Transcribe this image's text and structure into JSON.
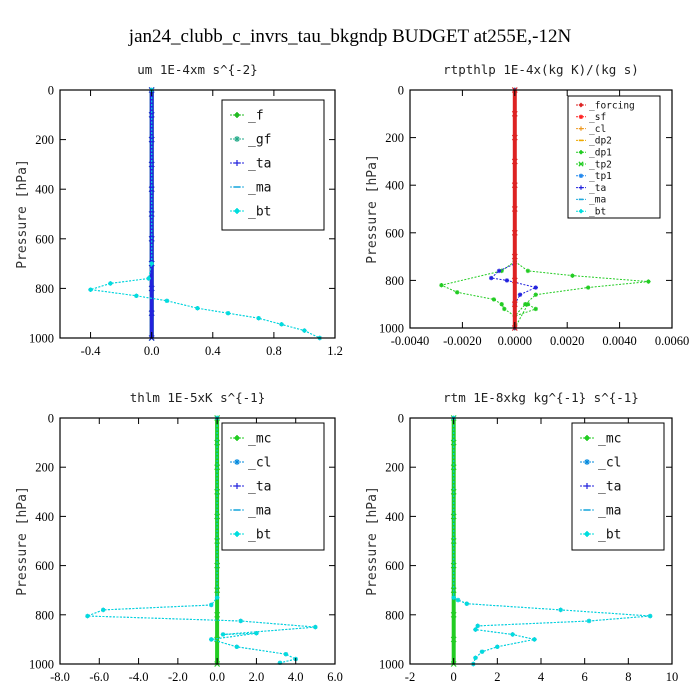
{
  "figure_title": "jan24_clubb_c_invrs_tau_bkgndp  BUDGET at255E,-12N",
  "colors": {
    "f": "#22bb22",
    "gf": "#22aa88",
    "ta": "#2222dd",
    "ma": "#22aadd",
    "bt": "#00dddd",
    "forcing": "#dd2222",
    "sf": "#ff2222",
    "cl": "#ee9922",
    "dp2": "#eeaa00",
    "dp1": "#22cc22",
    "tp2": "#22cc22",
    "tp1": "#2288ee",
    "mc": "#22cc22",
    "cl_blue": "#0088dd"
  },
  "chart_data": [
    {
      "type": "line",
      "title": "um   1E-4xm s^{-2}",
      "ylabel": "Pressure [hPa]",
      "xlim": [
        -0.6,
        1.2
      ],
      "ylim": [
        1000,
        0
      ],
      "xticks": [
        -0.4,
        0,
        0.4,
        0.8,
        1.2
      ],
      "xtick_labels": [
        "-0.4",
        "0.0",
        "0.4",
        "0.8",
        "1.2"
      ],
      "yticks": [
        0,
        200,
        400,
        600,
        800,
        1000
      ],
      "ytick_labels": [
        "0",
        "200",
        "400",
        "600",
        "800",
        "1000"
      ],
      "legend_position": "top-right",
      "legend": [
        "_f",
        "_gf",
        "_ta",
        "_ma",
        "_bt"
      ],
      "series": [
        {
          "name": "_f",
          "color": "#22bb22",
          "x": [
            0,
            0,
            0,
            0,
            0,
            0,
            0,
            0,
            0,
            0,
            0
          ],
          "y": [
            0,
            100,
            200,
            300,
            400,
            500,
            600,
            700,
            800,
            900,
            1000
          ]
        },
        {
          "name": "_gf",
          "color": "#22aa88",
          "x": [
            0,
            0,
            0,
            0,
            0,
            0,
            0,
            0,
            0,
            0,
            0
          ],
          "y": [
            0,
            100,
            200,
            300,
            400,
            500,
            600,
            700,
            800,
            900,
            1000
          ]
        },
        {
          "name": "_ta",
          "color": "#2222dd",
          "x": [
            0,
            0,
            0,
            0,
            0,
            0,
            0,
            0,
            0,
            0,
            0
          ],
          "y": [
            0,
            100,
            200,
            300,
            400,
            500,
            600,
            700,
            800,
            900,
            1000
          ]
        },
        {
          "name": "_ma",
          "color": "#22aadd",
          "x": [
            0,
            0,
            -0.02,
            -0.27,
            -0.4,
            -0.1,
            0.1,
            0.3,
            0.5,
            0.7,
            0.85,
            1.0,
            1.1
          ],
          "y": [
            0,
            700,
            760,
            780,
            805,
            830,
            850,
            880,
            900,
            920,
            945,
            970,
            1000
          ]
        },
        {
          "name": "_bt",
          "color": "#00dddd",
          "x": [
            0,
            0,
            -0.02,
            -0.27,
            -0.4,
            -0.1,
            0.1,
            0.3,
            0.5,
            0.7,
            0.85,
            1.0,
            1.1
          ],
          "y": [
            0,
            700,
            760,
            780,
            805,
            830,
            850,
            880,
            900,
            920,
            945,
            970,
            1000
          ]
        }
      ]
    },
    {
      "type": "line",
      "title": "rtpthlp   1E-4x(kg K)/(kg s)",
      "ylabel": "Pressure [hPa]",
      "xlim": [
        -0.004,
        0.006
      ],
      "ylim": [
        1000,
        0
      ],
      "xticks": [
        -0.004,
        -0.002,
        0,
        0.002,
        0.004,
        0.006
      ],
      "xtick_labels": [
        "-0.0040",
        "-0.0020",
        "0.0000",
        "0.0020",
        "0.0040",
        "0.0060"
      ],
      "yticks": [
        0,
        200,
        400,
        600,
        800,
        1000
      ],
      "ytick_labels": [
        "0",
        "200",
        "400",
        "600",
        "800",
        "1000"
      ],
      "legend_position": "top-right",
      "legend": [
        "_forcing",
        "_sf",
        "_cl",
        "_dp2",
        "_dp1",
        "_tp2",
        "_tp1",
        "_ta",
        "_ma",
        "_bt"
      ],
      "series": [
        {
          "name": "_tp2",
          "color": "#22cc22",
          "x": [
            0,
            0,
            -0.0005,
            -0.0028,
            -0.0022,
            -0.0008,
            -0.0005,
            -0.0004,
            0,
            0.0008,
            0.0005,
            0
          ],
          "y": [
            0,
            720,
            760,
            820,
            850,
            880,
            900,
            920,
            950,
            920,
            900,
            1000
          ]
        },
        {
          "name": "_dp1",
          "color": "#22cc22",
          "x": [
            0,
            0,
            0.0005,
            0.0022,
            0.0051,
            0.0028,
            0.0008,
            0.0004,
            0,
            0
          ],
          "y": [
            0,
            720,
            760,
            780,
            805,
            830,
            860,
            900,
            950,
            1000
          ]
        },
        {
          "name": "_ta",
          "color": "#2222dd",
          "x": [
            0,
            0,
            -0.0006,
            -0.0009,
            -0.0003,
            0.0008,
            0.0002,
            0,
            0
          ],
          "y": [
            0,
            730,
            760,
            790,
            800,
            830,
            860,
            900,
            1000
          ]
        },
        {
          "name": "_forcing",
          "color": "#dd2222",
          "x": [
            0,
            0,
            0,
            0,
            0,
            0,
            0,
            0,
            0,
            0,
            0
          ],
          "y": [
            0,
            100,
            200,
            300,
            400,
            500,
            600,
            700,
            800,
            900,
            1000
          ]
        }
      ]
    },
    {
      "type": "line",
      "title": "thlm   1E-5xK s^{-1}",
      "ylabel": "Pressure [hPa]",
      "xlim": [
        -8,
        6
      ],
      "ylim": [
        1000,
        0
      ],
      "xticks": [
        -8,
        -6,
        -4,
        -2,
        0,
        2,
        4,
        6
      ],
      "xtick_labels": [
        "-8.0",
        "-6.0",
        "-4.0",
        "-2.0",
        "0.0",
        "2.0",
        "4.0",
        "6.0"
      ],
      "yticks": [
        0,
        200,
        400,
        600,
        800,
        1000
      ],
      "ytick_labels": [
        "0",
        "200",
        "400",
        "600",
        "800",
        "1000"
      ],
      "legend_position": "top-right",
      "legend": [
        "_mc",
        "_cl",
        "_ta",
        "_ma",
        "_bt"
      ],
      "series": [
        {
          "name": "_mc",
          "color": "#22cc22",
          "x": [
            0,
            0,
            0,
            0,
            0,
            0,
            0,
            0,
            0,
            0,
            0
          ],
          "y": [
            0,
            100,
            200,
            300,
            400,
            500,
            600,
            700,
            800,
            900,
            1000
          ]
        },
        {
          "name": "_cl",
          "color": "#0088dd",
          "x": [
            0,
            0,
            -0.3,
            -5.8,
            -6.6,
            1.2,
            5.0,
            0.3,
            2.0,
            -0.3,
            1.0,
            3.5,
            4.0,
            3.2
          ],
          "y": [
            0,
            730,
            760,
            780,
            805,
            825,
            850,
            880,
            875,
            900,
            930,
            960,
            980,
            995
          ]
        },
        {
          "name": "_bt",
          "color": "#00dddd",
          "x": [
            0,
            0,
            -0.3,
            -5.8,
            -6.6,
            1.2,
            5.0,
            0.3,
            2.0,
            -0.3,
            1.0,
            3.5,
            4.0,
            3.2
          ],
          "y": [
            0,
            730,
            760,
            780,
            805,
            825,
            850,
            880,
            875,
            900,
            930,
            960,
            980,
            995
          ]
        }
      ]
    },
    {
      "type": "line",
      "title": "rtm   1E-8xkg kg^{-1} s^{-1}",
      "ylabel": "Pressure [hPa]",
      "xlim": [
        -2,
        10
      ],
      "ylim": [
        1000,
        0
      ],
      "xticks": [
        -2,
        0,
        2,
        4,
        6,
        8,
        10
      ],
      "xtick_labels": [
        "-2",
        "0",
        "2",
        "4",
        "6",
        "8",
        "10"
      ],
      "yticks": [
        0,
        200,
        400,
        600,
        800,
        1000
      ],
      "ytick_labels": [
        "0",
        "200",
        "400",
        "600",
        "800",
        "1000"
      ],
      "legend_position": "top-right",
      "legend": [
        "_mc",
        "_cl",
        "_ta",
        "_ma",
        "_bt"
      ],
      "series": [
        {
          "name": "_mc",
          "color": "#22cc22",
          "x": [
            0,
            0,
            0,
            0,
            0,
            0,
            0,
            0,
            0,
            0,
            0
          ],
          "y": [
            0,
            100,
            200,
            300,
            400,
            500,
            600,
            700,
            800,
            900,
            1000
          ]
        },
        {
          "name": "_cl",
          "color": "#0088dd",
          "x": [
            0,
            0,
            0.2,
            0.6,
            4.9,
            9.0,
            6.2,
            1.1,
            1.0,
            2.7,
            3.7,
            2.0,
            1.3,
            1.0,
            0.9
          ],
          "y": [
            0,
            730,
            740,
            755,
            780,
            805,
            825,
            845,
            860,
            880,
            900,
            930,
            950,
            975,
            1000
          ]
        },
        {
          "name": "_bt",
          "color": "#00dddd",
          "x": [
            0,
            0,
            0.2,
            0.6,
            4.9,
            9.0,
            6.2,
            1.1,
            1.0,
            2.7,
            3.7,
            2.0,
            1.3,
            1.0,
            0.9
          ],
          "y": [
            0,
            730,
            740,
            755,
            780,
            805,
            825,
            845,
            860,
            880,
            900,
            930,
            950,
            975,
            1000
          ]
        }
      ]
    }
  ]
}
